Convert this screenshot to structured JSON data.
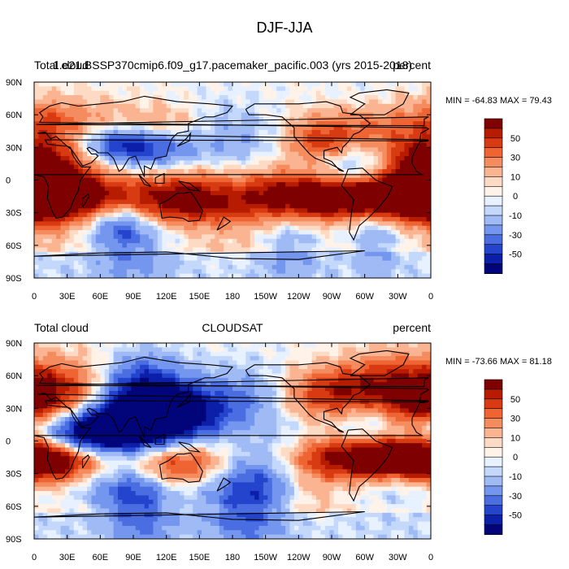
{
  "title": "DJF-JJA",
  "panels": [
    {
      "case_name": "1.e21.BSSP370cmip6.f09_g17.pacemaker_pacific.003 (yrs 2015-2018)",
      "left_label": "Total cloud",
      "right_label": "percent",
      "min_max": "MIN = -64.83 MAX =  79.43"
    },
    {
      "left_label": "Total cloud",
      "center_label": "CLOUDSAT",
      "right_label": "percent",
      "min_max": "MIN = -73.66 MAX =  81.18"
    }
  ],
  "lat_labels": [
    "90N",
    "60N",
    "30N",
    "0",
    "30S",
    "60S",
    "90S"
  ],
  "lon_labels": [
    "0",
    "30E",
    "60E",
    "90E",
    "120E",
    "150E",
    "180",
    "150W",
    "120W",
    "90W",
    "60W",
    "30W",
    "0"
  ],
  "colorbar": {
    "labels": [
      "50",
      "30",
      "10",
      "0",
      "-10",
      "-30",
      "-50"
    ],
    "colors": [
      "#7f0000",
      "#b71c00",
      "#d83a12",
      "#ef6433",
      "#f58c5f",
      "#fab492",
      "#fddac4",
      "#fff2e8",
      "#e7f1ff",
      "#c4d8fb",
      "#9fbaf5",
      "#7496ee",
      "#4a6ee2",
      "#2544cd",
      "#0c1fa8",
      "#02047a"
    ]
  }
}
